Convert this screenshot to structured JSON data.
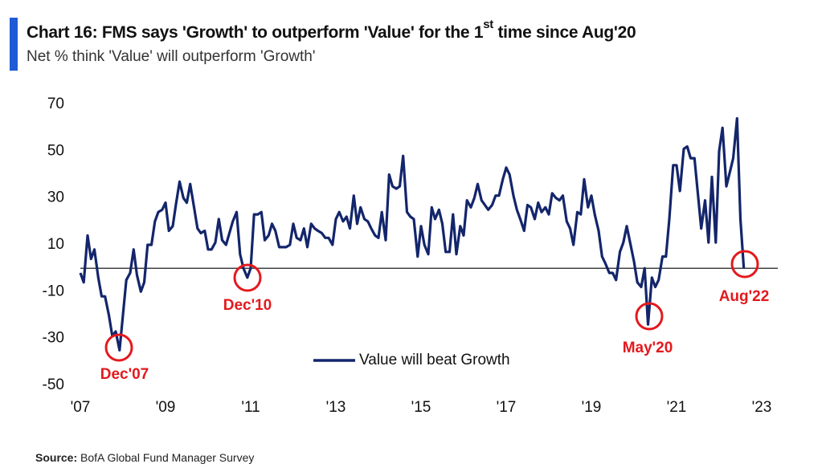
{
  "chart_data": {
    "type": "line",
    "title": "Chart 16: FMS says 'Growth' to outperform 'Value' for the 1",
    "title_superscript": "st",
    "title_end": " time since Aug'20",
    "subtitle": "Net % think 'Value' will outperform 'Growth'",
    "source_label": "Source:",
    "source": "BofA Global Fund Manager Survey",
    "x": [
      2007.0,
      2007.08,
      2007.17,
      2007.25,
      2007.33,
      2007.42,
      2007.5,
      2007.58,
      2007.67,
      2007.75,
      2007.83,
      2007.92,
      2008.0,
      2008.08,
      2008.17,
      2008.25,
      2008.33,
      2008.42,
      2008.5,
      2008.58,
      2008.67,
      2008.75,
      2008.83,
      2008.92,
      2009.0,
      2009.08,
      2009.17,
      2009.25,
      2009.33,
      2009.42,
      2009.5,
      2009.58,
      2009.67,
      2009.75,
      2009.83,
      2009.92,
      2010.0,
      2010.08,
      2010.17,
      2010.25,
      2010.33,
      2010.42,
      2010.5,
      2010.58,
      2010.67,
      2010.75,
      2010.83,
      2010.92,
      2011.0,
      2011.08,
      2011.17,
      2011.25,
      2011.33,
      2011.42,
      2011.5,
      2011.58,
      2011.67,
      2011.75,
      2011.83,
      2011.92,
      2012.0,
      2012.08,
      2012.17,
      2012.25,
      2012.33,
      2012.42,
      2012.5,
      2012.58,
      2012.67,
      2012.75,
      2012.83,
      2012.92,
      2013.0,
      2013.08,
      2013.17,
      2013.25,
      2013.33,
      2013.42,
      2013.5,
      2013.58,
      2013.67,
      2013.75,
      2013.83,
      2013.92,
      2014.0,
      2014.08,
      2014.17,
      2014.25,
      2014.33,
      2014.42,
      2014.5,
      2014.58,
      2014.67,
      2014.75,
      2014.83,
      2014.92,
      2015.0,
      2015.08,
      2015.17,
      2015.25,
      2015.33,
      2015.42,
      2015.5,
      2015.58,
      2015.67,
      2015.75,
      2015.83,
      2015.92,
      2016.0,
      2016.08,
      2016.17,
      2016.25,
      2016.33,
      2016.42,
      2016.5,
      2016.58,
      2016.67,
      2016.75,
      2016.83,
      2016.92,
      2017.0,
      2017.08,
      2017.17,
      2017.25,
      2017.33,
      2017.42,
      2017.5,
      2017.58,
      2017.67,
      2017.75,
      2017.83,
      2017.92,
      2018.0,
      2018.08,
      2018.17,
      2018.25,
      2018.33,
      2018.42,
      2018.5,
      2018.58,
      2018.67,
      2018.75,
      2018.83,
      2018.92,
      2019.0,
      2019.08,
      2019.17,
      2019.25,
      2019.33,
      2019.42,
      2019.5,
      2019.58,
      2019.67,
      2019.75,
      2019.83,
      2019.92,
      2020.0,
      2020.08,
      2020.17,
      2020.25,
      2020.33,
      2020.42,
      2020.5,
      2020.58,
      2020.67,
      2020.75,
      2020.83,
      2020.92,
      2021.0,
      2021.08,
      2021.17,
      2021.25,
      2021.33,
      2021.42,
      2021.5,
      2021.58,
      2021.67,
      2021.75,
      2021.83,
      2021.92,
      2022.0,
      2022.08,
      2022.17,
      2022.25,
      2022.33,
      2022.42,
      2022.5,
      2022.58
    ],
    "series": [
      {
        "name": "Value will beat Growth",
        "color": "#13256b",
        "values": [
          -2,
          -6,
          14,
          4,
          8,
          -4,
          -12,
          -12,
          -20,
          -29,
          -27,
          -35,
          -20,
          -5,
          -2,
          8,
          -3,
          -10,
          -6,
          10,
          10,
          20,
          24,
          25,
          28,
          16,
          18,
          28,
          37,
          30,
          28,
          36,
          26,
          17,
          15,
          16,
          8,
          8,
          11,
          21,
          12,
          10,
          15,
          20,
          24,
          6,
          0,
          -4,
          0,
          23,
          23,
          24,
          12,
          14,
          19,
          16,
          9,
          9,
          9,
          10,
          19,
          13,
          12,
          17,
          9,
          19,
          17,
          16,
          15,
          13,
          13,
          10,
          21,
          24,
          20,
          22,
          17,
          31,
          19,
          26,
          21,
          20,
          17,
          14,
          13,
          24,
          12,
          40,
          35,
          34,
          35,
          48,
          24,
          22,
          21,
          5,
          18,
          10,
          6,
          26,
          21,
          25,
          19,
          7,
          7,
          23,
          6,
          18,
          14,
          29,
          26,
          30,
          36,
          29,
          27,
          25,
          27,
          31,
          31,
          38,
          43,
          40,
          31,
          25,
          21,
          16,
          27,
          26,
          21,
          28,
          24,
          26,
          23,
          32,
          30,
          29,
          31,
          20,
          17,
          10,
          24,
          23,
          38,
          26,
          31,
          23,
          16,
          5,
          2,
          -2,
          -2,
          -5,
          7,
          11,
          18,
          10,
          3,
          -6,
          -8,
          0,
          -24,
          -4,
          -8,
          -5,
          5,
          5,
          21,
          44,
          44,
          33,
          51,
          52,
          47,
          47,
          32,
          17,
          29,
          11,
          39,
          11,
          50,
          60,
          35,
          41,
          47,
          64,
          21,
          0
        ]
      }
    ],
    "xlim": [
      2007,
      2023
    ],
    "xticks": [
      {
        "value": 2007,
        "label": "'07"
      },
      {
        "value": 2009,
        "label": "'09"
      },
      {
        "value": 2011,
        "label": "'11"
      },
      {
        "value": 2013,
        "label": "'13"
      },
      {
        "value": 2015,
        "label": "'15"
      },
      {
        "value": 2017,
        "label": "'17"
      },
      {
        "value": 2019,
        "label": "'19"
      },
      {
        "value": 2021,
        "label": "'21"
      },
      {
        "value": 2023,
        "label": "'23"
      }
    ],
    "ylim": [
      -50,
      70
    ],
    "yticks": [
      -50,
      -30,
      -10,
      10,
      30,
      50,
      70
    ],
    "annotations": [
      "Dec'07",
      "Dec'10",
      "May'20",
      "Aug'22"
    ],
    "annotation_color": "#e3191d",
    "legend": "bottom-center"
  }
}
